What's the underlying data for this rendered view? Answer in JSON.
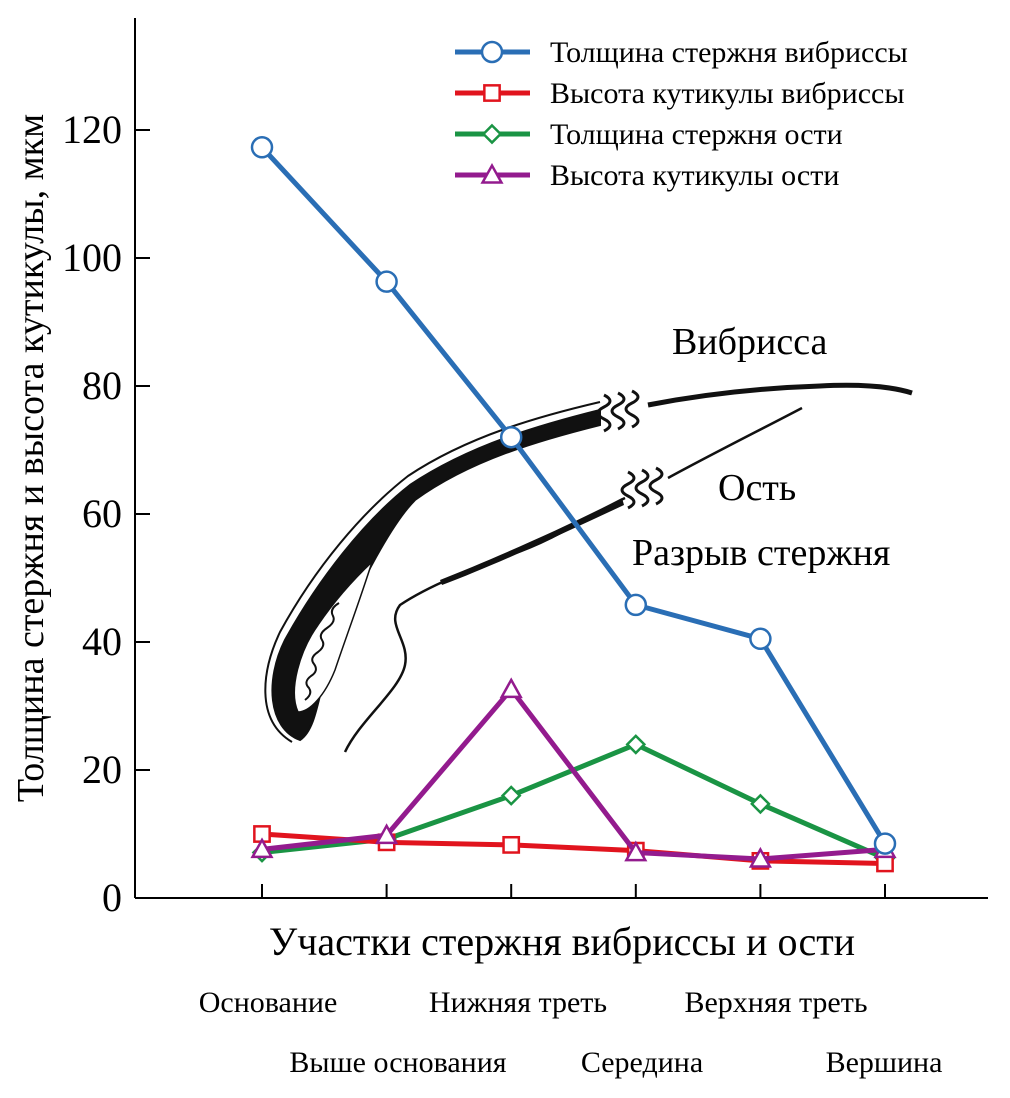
{
  "chart_data": {
    "type": "line",
    "title": "",
    "xlabel": "Участки стержня вибриссы и ости",
    "ylabel": "Толщина стержня и высота кутикулы, мкм",
    "ylim": [
      0,
      140
    ],
    "yticks": [
      0,
      20,
      40,
      60,
      80,
      100,
      120
    ],
    "legend_position": "top-right",
    "grid": false,
    "categories": [
      "Основание",
      "Выше основания",
      "Нижняя треть",
      "Середина",
      "Верхняя треть",
      "Вершина"
    ],
    "series": [
      {
        "name": "Толщина стержня вибриссы",
        "color": "#2a6eb5",
        "marker": "circle",
        "values": [
          117.3,
          96.3,
          72.0,
          45.8,
          40.5,
          8.5
        ]
      },
      {
        "name": "Высота кутикулы вибриссы",
        "color": "#e1141e",
        "marker": "square",
        "values": [
          10.0,
          8.7,
          8.3,
          7.4,
          5.8,
          5.4
        ]
      },
      {
        "name": "Толщина стержня ости",
        "color": "#1a9444",
        "marker": "diamond",
        "values": [
          7.1,
          9.2,
          16.0,
          24.0,
          14.7,
          6.2
        ]
      },
      {
        "name": "Высота кутикулы ости",
        "color": "#931b8e",
        "marker": "triangle",
        "values": [
          7.6,
          9.8,
          32.6,
          7.1,
          6.1,
          7.6
        ]
      }
    ],
    "annotations": {
      "vibrissa": "Вибрисса",
      "guard_hair": "Ость",
      "shaft_break": "Разрыв стержня"
    }
  }
}
